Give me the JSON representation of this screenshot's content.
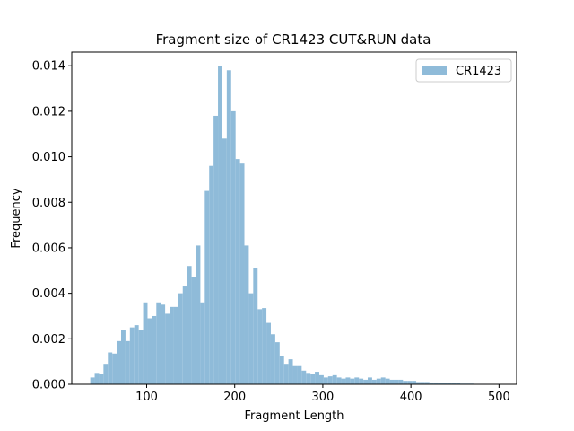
{
  "chart_data": {
    "type": "bar",
    "title": "Fragment size of CR1423 CUT&RUN data",
    "xlabel": "Fragment Length",
    "ylabel": "Frequency",
    "xlim": [
      15,
      520
    ],
    "ylim": [
      0,
      0.0146
    ],
    "xticks": [
      100,
      200,
      300,
      400,
      500
    ],
    "xtick_labels": [
      "100",
      "200",
      "300",
      "400",
      "500"
    ],
    "yticks": [
      0,
      0.002,
      0.004,
      0.006,
      0.008,
      0.01,
      0.012,
      0.014
    ],
    "ytick_labels": [
      "0.000",
      "0.002",
      "0.004",
      "0.006",
      "0.008",
      "0.010",
      "0.012",
      "0.014"
    ],
    "legend_position": "top-right",
    "grid": false,
    "series": [
      {
        "name": "CR1423",
        "color": "#8fbbd9",
        "bin_start": 36,
        "bin_width": 5,
        "values": [
          0.0003,
          0.0005,
          0.00045,
          0.0009,
          0.0014,
          0.00135,
          0.0019,
          0.0024,
          0.0019,
          0.0025,
          0.0026,
          0.0024,
          0.0036,
          0.0029,
          0.003,
          0.0036,
          0.0035,
          0.0031,
          0.0034,
          0.0034,
          0.004,
          0.0043,
          0.0052,
          0.0047,
          0.0061,
          0.0036,
          0.0085,
          0.0096,
          0.0118,
          0.014,
          0.0108,
          0.0138,
          0.012,
          0.0099,
          0.0097,
          0.0061,
          0.004,
          0.0051,
          0.0033,
          0.00335,
          0.0027,
          0.0022,
          0.00185,
          0.00125,
          0.0009,
          0.0011,
          0.0008,
          0.0008,
          0.0006,
          0.0005,
          0.00045,
          0.00055,
          0.0004,
          0.0003,
          0.00035,
          0.0004,
          0.0003,
          0.00025,
          0.0003,
          0.00025,
          0.0003,
          0.00025,
          0.0002,
          0.0003,
          0.0002,
          0.00025,
          0.0003,
          0.00025,
          0.0002,
          0.0002,
          0.0002,
          0.00015,
          0.00015,
          0.00015,
          0.0001,
          0.0001,
          0.0001,
          8e-05,
          8e-05,
          6e-05,
          5e-05,
          5e-05,
          5e-05,
          4e-05,
          3e-05,
          3e-05,
          3e-05,
          2e-05,
          2e-05,
          2e-05,
          1e-05,
          1e-05,
          1e-05
        ]
      }
    ]
  }
}
